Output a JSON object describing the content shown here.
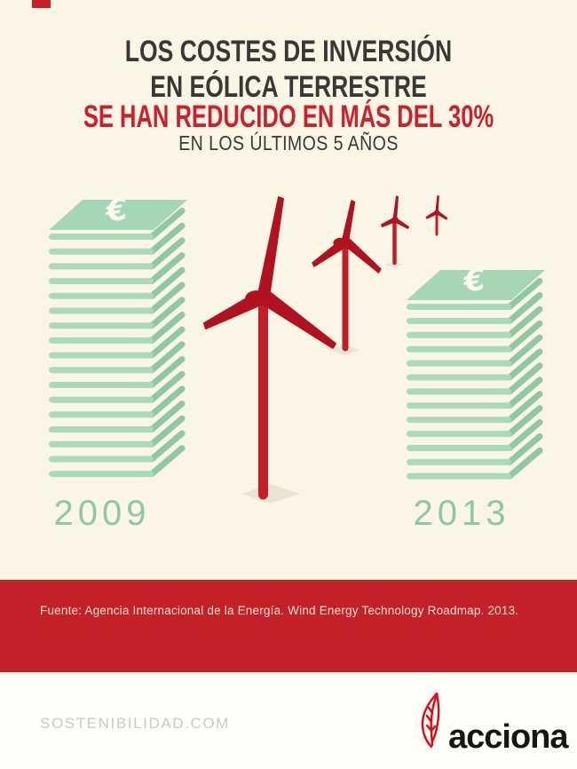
{
  "colors": {
    "background": "#fbf5e6",
    "headline_dark": "#3a3837",
    "headline_red": "#ce202c",
    "band_red": "#c32127",
    "bill_front_green": "#abd9bb",
    "bill_side_green": "#8fc9a2",
    "bill_top_green": "#a5d6b6",
    "year_green": "#8cc9a3",
    "turbine_red": "#b0131f",
    "footer_gray": "#cac9c4",
    "brand_black": "#161616",
    "leaf_red": "#e30613"
  },
  "header": {
    "title_line1": "LOS COSTES DE INVERSIÓN",
    "title_line2": "EN EÓLICA TERRESTRE",
    "highlight_line": "SE HAN REDUCIDO EN MÁS DEL 30%",
    "subtitle": "EN LOS ÚLTIMOS 5 AÑOS"
  },
  "chart_data": {
    "type": "pictorial-bar",
    "title": "Costes de inversión en eólica terrestre",
    "categories": [
      "2009",
      "2013"
    ],
    "series": [
      {
        "name": "Altura de la pila de billetes (nº de billetes)",
        "values": [
          17,
          13
        ]
      }
    ],
    "currency_symbol": "€",
    "annotation": "Reducción de más del 30% en los últimos 5 años",
    "decoration": "4 aerogeneradores rojos en tamaño decreciente entre las dos pilas de billetes"
  },
  "source_bar": {
    "text": "Fuente: Agencia Internacional de la Energía. Wind Energy Technology Roadmap. 2013."
  },
  "footer": {
    "website": "SOSTENIBILIDAD.COM",
    "brand": "acciona"
  }
}
